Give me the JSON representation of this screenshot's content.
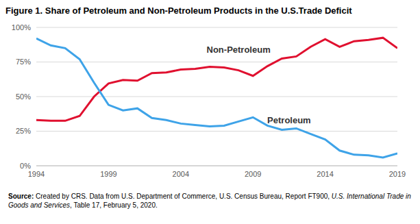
{
  "chart_data": {
    "type": "line",
    "title": "Figure 1. Share of Petroleum and Non-Petroleum Products in the U.S.Trade Deficit",
    "x": [
      1994,
      1995,
      1996,
      1997,
      1998,
      1999,
      2000,
      2001,
      2002,
      2003,
      2004,
      2005,
      2006,
      2007,
      2008,
      2009,
      2010,
      2011,
      2012,
      2013,
      2014,
      2015,
      2016,
      2017,
      2018,
      2019
    ],
    "series": [
      {
        "name": "Non-Petroleum",
        "color": "#e0102f",
        "values": [
          33,
          32.5,
          32.5,
          36,
          50,
          59.5,
          62,
          61.5,
          67,
          67.5,
          69.5,
          70,
          71.5,
          71,
          69,
          65,
          72,
          77.5,
          79,
          86,
          91.5,
          86,
          90,
          91,
          92.5,
          85
        ]
      },
      {
        "name": "Petroleum",
        "color": "#3ea3e8",
        "values": [
          92,
          87,
          85,
          77,
          60,
          44,
          40,
          41.5,
          34.5,
          33,
          30.5,
          29.5,
          28.5,
          29,
          32,
          35,
          29,
          26,
          27,
          23,
          19,
          11,
          8,
          7.5,
          6,
          9
        ]
      }
    ],
    "annotations": [
      {
        "text": "Non-Petroleum",
        "x": 2008,
        "y": 84
      },
      {
        "text": "Petroleum",
        "x": 2011.5,
        "y": 33
      }
    ],
    "xlim": [
      1994,
      2019
    ],
    "xticks": [
      1994,
      1999,
      2004,
      2009,
      2014,
      2019
    ],
    "ylim": [
      0,
      100
    ],
    "yticks": [
      {
        "value": 0,
        "label": "0%"
      },
      {
        "value": 25,
        "label": "25%"
      },
      {
        "value": 50,
        "label": "50%"
      },
      {
        "value": 75,
        "label": "75%"
      },
      {
        "value": 100,
        "label": "100%"
      }
    ],
    "grid": true,
    "source": {
      "label": "Source:",
      "text": "Created by CRS. Data from U.S. Department of Commerce, U.S. Census Bureau, Report FT900,",
      "italic": "U.S. International Trade in Goods and Services",
      "rest": ", Table 17, February 5, 2020."
    }
  }
}
